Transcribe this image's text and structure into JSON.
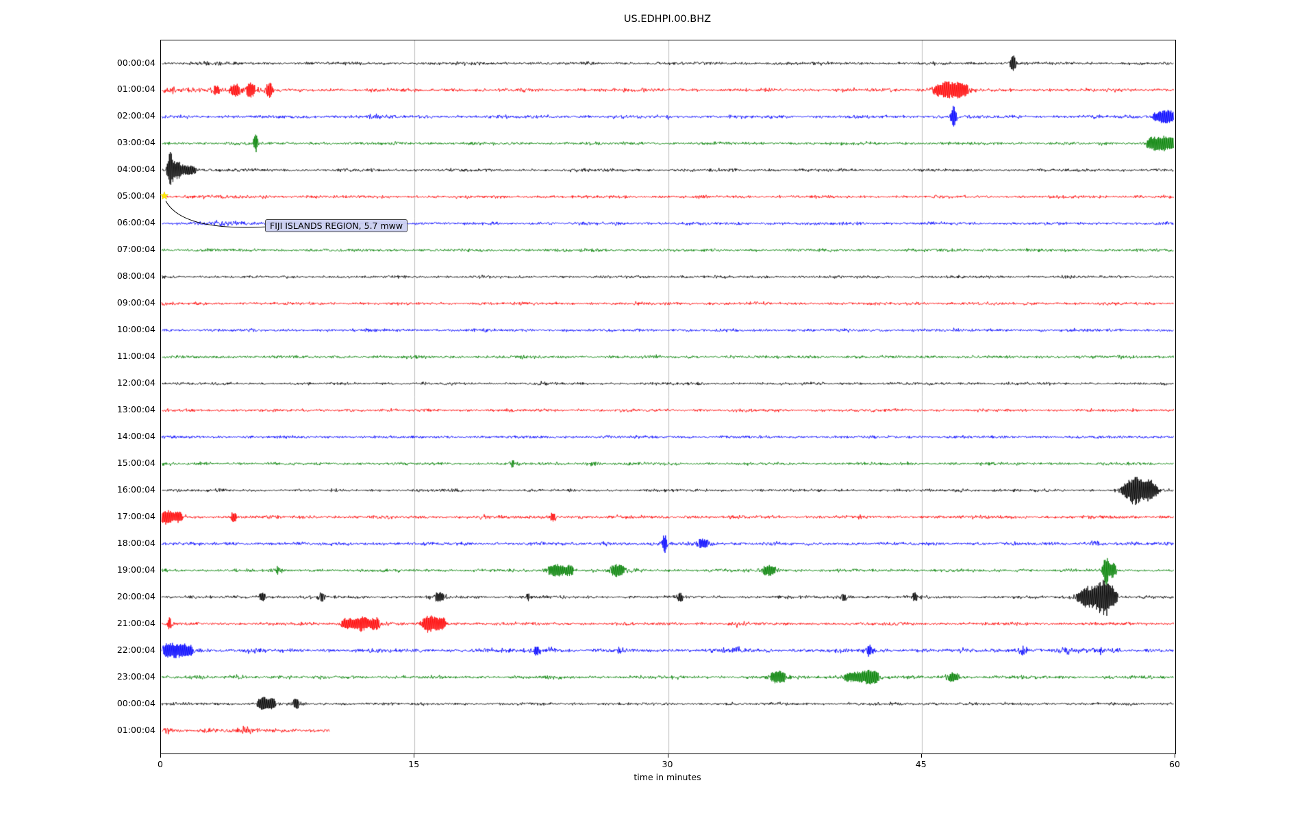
{
  "title": "US.EDHPI.00.BHZ",
  "xlabel": "time in minutes",
  "icons": {
    "event_marker": "★"
  },
  "annotation": {
    "text": "FIJI ISLANDS REGION, 5.7 mww",
    "row": "05:00:04",
    "x_minute": 0.2,
    "marker": "star",
    "marker_color": "#ffe800"
  },
  "chart_data": {
    "type": "line",
    "title": "US.EDHPI.00.BHZ",
    "xlabel": "time in minutes",
    "ylabel": "",
    "xlim": [
      0,
      60
    ],
    "x_ticks": [
      0,
      15,
      30,
      45,
      60
    ],
    "grid": true,
    "grid_x": [
      15,
      30,
      45
    ],
    "grid_color": "#bdbdbd",
    "colors": {
      "black": "#000000",
      "red": "#ff0000",
      "blue": "#0000ff",
      "green": "#008000"
    },
    "rows": [
      {
        "label": "00:00:04",
        "color": "black",
        "len": 60,
        "base": 2.3,
        "bursts": [
          [
            50.4,
            0.12,
            10
          ],
          [
            3,
            0.4,
            1.5
          ]
        ]
      },
      {
        "label": "01:00:04",
        "color": "red",
        "len": 60,
        "base": 2.7,
        "bursts": [
          [
            0.5,
            0.3,
            4
          ],
          [
            2.0,
            0.3,
            3
          ],
          [
            3.3,
            0.3,
            5
          ],
          [
            4.4,
            0.25,
            8
          ],
          [
            5.3,
            0.2,
            10
          ],
          [
            6.4,
            0.15,
            9
          ],
          [
            46.4,
            0.5,
            11
          ],
          [
            47.4,
            0.3,
            8
          ]
        ]
      },
      {
        "label": "02:00:04",
        "color": "blue",
        "len": 60,
        "base": 2.5,
        "bursts": [
          [
            12.5,
            0.3,
            3
          ],
          [
            30,
            0.2,
            2
          ],
          [
            46.9,
            0.12,
            15
          ],
          [
            59.4,
            0.6,
            8
          ]
        ]
      },
      {
        "label": "03:00:04",
        "color": "green",
        "len": 60,
        "base": 2.3,
        "bursts": [
          [
            5.6,
            0.1,
            11
          ],
          [
            58.6,
            0.25,
            6
          ],
          [
            59.4,
            0.5,
            10
          ]
        ]
      },
      {
        "label": "04:00:04",
        "color": "black",
        "len": 60,
        "base": 2.3,
        "bursts": [
          [
            0.55,
            0.12,
            24
          ],
          [
            0.95,
            0.2,
            13
          ],
          [
            1.7,
            0.35,
            6
          ]
        ]
      },
      {
        "label": "05:00:04",
        "color": "red",
        "len": 60,
        "base": 2.3,
        "bursts": [
          [
            2.5,
            0.6,
            1.5
          ]
        ]
      },
      {
        "label": "06:00:04",
        "color": "blue",
        "len": 60,
        "base": 2.3,
        "bursts": [
          [
            3.6,
            1.2,
            2.5
          ]
        ]
      },
      {
        "label": "07:00:04",
        "color": "green",
        "len": 60,
        "base": 2.3,
        "bursts": []
      },
      {
        "label": "08:00:04",
        "color": "black",
        "len": 60,
        "base": 2.1,
        "bursts": []
      },
      {
        "label": "09:00:04",
        "color": "red",
        "len": 60,
        "base": 2.3,
        "bursts": []
      },
      {
        "label": "10:00:04",
        "color": "blue",
        "len": 60,
        "base": 2.3,
        "bursts": []
      },
      {
        "label": "11:00:04",
        "color": "green",
        "len": 60,
        "base": 2.3,
        "bursts": [
          [
            21.2,
            0.3,
            2
          ]
        ]
      },
      {
        "label": "12:00:04",
        "color": "black",
        "len": 60,
        "base": 2.1,
        "bursts": [
          [
            22.6,
            0.2,
            3
          ]
        ]
      },
      {
        "label": "13:00:04",
        "color": "red",
        "len": 60,
        "base": 2.3,
        "bursts": []
      },
      {
        "label": "14:00:04",
        "color": "blue",
        "len": 60,
        "base": 2.3,
        "bursts": []
      },
      {
        "label": "15:00:04",
        "color": "green",
        "len": 60,
        "base": 2.3,
        "bursts": [
          [
            20.8,
            0.15,
            4
          ],
          [
            25.5,
            0.2,
            3
          ]
        ]
      },
      {
        "label": "16:00:04",
        "color": "black",
        "len": 60,
        "base": 2.1,
        "bursts": [
          [
            47.2,
            0.2,
            3
          ],
          [
            57.6,
            0.45,
            19
          ],
          [
            58.5,
            0.3,
            13
          ]
        ]
      },
      {
        "label": "17:00:04",
        "color": "red",
        "len": 60,
        "base": 2.5,
        "bursts": [
          [
            0.35,
            0.3,
            9
          ],
          [
            1.1,
            0.2,
            6
          ],
          [
            4.3,
            0.15,
            6
          ],
          [
            18.9,
            0.2,
            4
          ],
          [
            23.2,
            0.2,
            5
          ]
        ]
      },
      {
        "label": "18:00:04",
        "color": "blue",
        "len": 60,
        "base": 2.5,
        "bursts": [
          [
            26.2,
            0.3,
            3
          ],
          [
            29.8,
            0.1,
            12
          ],
          [
            32.1,
            0.4,
            5
          ],
          [
            55.2,
            0.3,
            3
          ]
        ]
      },
      {
        "label": "19:00:04",
        "color": "green",
        "len": 60,
        "base": 2.4,
        "bursts": [
          [
            6.9,
            0.2,
            4
          ],
          [
            23.4,
            0.4,
            8
          ],
          [
            24.2,
            0.2,
            6
          ],
          [
            27.0,
            0.3,
            8
          ],
          [
            36.0,
            0.4,
            6
          ],
          [
            55.9,
            0.12,
            20
          ],
          [
            56.3,
            0.15,
            9
          ]
        ]
      },
      {
        "label": "20:00:04",
        "color": "black",
        "len": 60,
        "base": 2.3,
        "bursts": [
          [
            6.0,
            0.2,
            5
          ],
          [
            9.5,
            0.2,
            4
          ],
          [
            16.5,
            0.3,
            5
          ],
          [
            21.7,
            0.2,
            4
          ],
          [
            30.7,
            0.15,
            5
          ],
          [
            40.4,
            0.3,
            4
          ],
          [
            44.6,
            0.3,
            4
          ],
          [
            54.8,
            0.4,
            15
          ],
          [
            55.7,
            0.3,
            24
          ],
          [
            56.2,
            0.25,
            13
          ]
        ]
      },
      {
        "label": "21:00:04",
        "color": "red",
        "len": 60,
        "base": 2.4,
        "bursts": [
          [
            0.5,
            0.1,
            7
          ],
          [
            11.0,
            0.3,
            7
          ],
          [
            11.9,
            0.3,
            10
          ],
          [
            12.7,
            0.2,
            8
          ],
          [
            15.9,
            0.3,
            11
          ],
          [
            16.6,
            0.2,
            9
          ],
          [
            34.1,
            0.3,
            3
          ]
        ]
      },
      {
        "label": "22:00:04",
        "color": "blue",
        "len": 60,
        "base": 3.1,
        "bursts": [
          [
            0.6,
            0.5,
            8
          ],
          [
            1.6,
            0.4,
            6
          ],
          [
            5.6,
            0.2,
            4
          ],
          [
            22.2,
            0.2,
            6
          ],
          [
            23.1,
            0.2,
            5
          ],
          [
            27.1,
            0.2,
            4
          ],
          [
            34.1,
            0.2,
            4
          ],
          [
            41.9,
            0.2,
            6
          ],
          [
            51.0,
            0.3,
            5
          ],
          [
            53.6,
            0.3,
            4
          ],
          [
            55.6,
            0.3,
            5
          ]
        ]
      },
      {
        "label": "23:00:04",
        "color": "green",
        "len": 60,
        "base": 2.5,
        "bursts": [
          [
            4.6,
            0.3,
            3
          ],
          [
            36.5,
            0.4,
            7
          ],
          [
            40.9,
            0.5,
            6
          ],
          [
            42.0,
            0.4,
            8
          ],
          [
            46.9,
            0.4,
            5
          ]
        ]
      },
      {
        "label": "00:00:04",
        "color": "black",
        "len": 60,
        "base": 2.2,
        "bursts": [
          [
            6.0,
            0.25,
            8
          ],
          [
            6.6,
            0.2,
            6
          ],
          [
            8.0,
            0.15,
            6
          ]
        ]
      },
      {
        "label": "01:00:04",
        "color": "red",
        "len": 10,
        "base": 3.2,
        "bursts": [
          [
            0.4,
            0.2,
            4
          ],
          [
            5.1,
            0.3,
            4
          ]
        ]
      }
    ]
  }
}
